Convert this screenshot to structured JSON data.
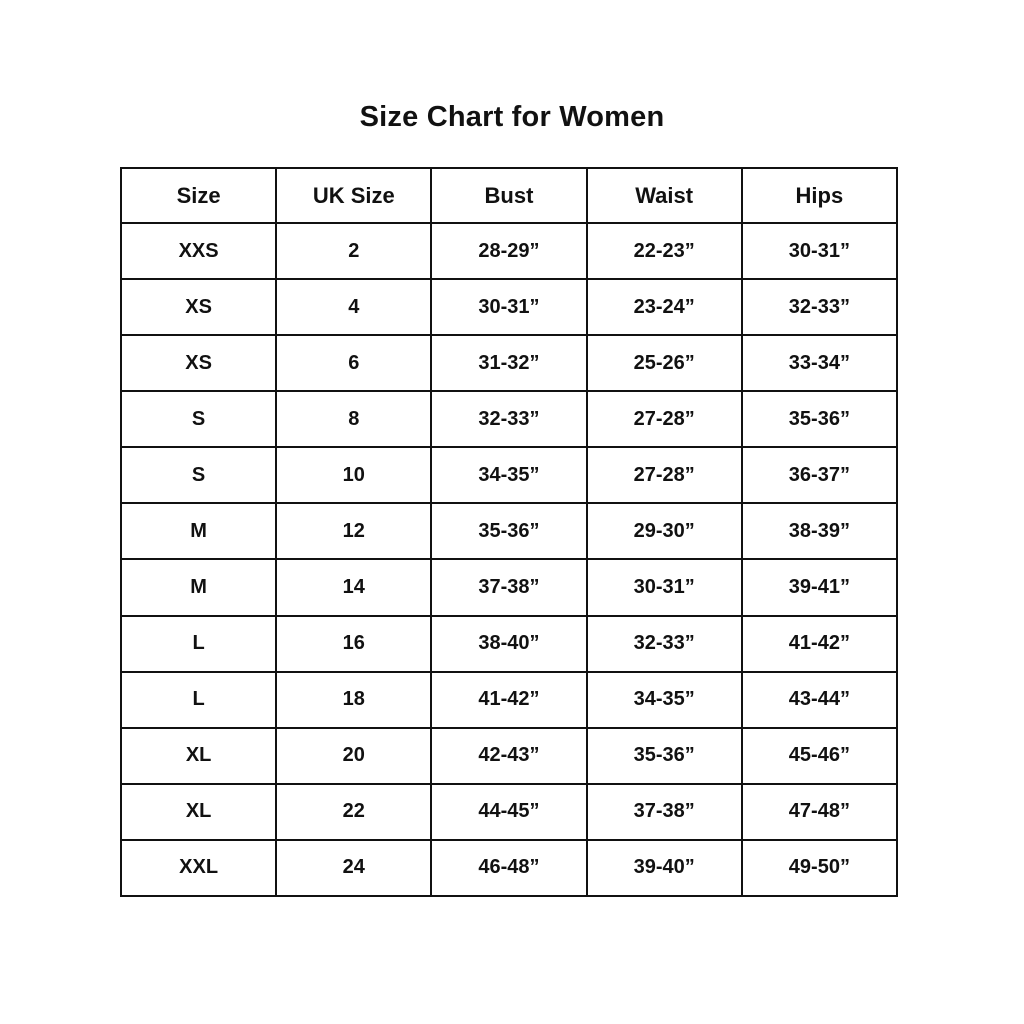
{
  "page": {
    "title": "Size Chart for Women"
  },
  "colors": {
    "background": "#ffffff",
    "text": "#111111",
    "border": "#111111"
  },
  "chart_data": {
    "type": "table",
    "title": "Size Chart for Women",
    "headers": [
      "Size",
      "UK Size",
      "Bust",
      "Waist",
      "Hips"
    ],
    "rows": [
      [
        "XXS",
        "2",
        "28-29”",
        "22-23”",
        "30-31”"
      ],
      [
        "XS",
        "4",
        "30-31”",
        "23-24”",
        "32-33”"
      ],
      [
        "XS",
        "6",
        "31-32”",
        "25-26”",
        "33-34”"
      ],
      [
        "S",
        "8",
        "32-33”",
        "27-28”",
        "35-36”"
      ],
      [
        "S",
        "10",
        "34-35”",
        "27-28”",
        "36-37”"
      ],
      [
        "M",
        "12",
        "35-36”",
        "29-30”",
        "38-39”"
      ],
      [
        "M",
        "14",
        "37-38”",
        "30-31”",
        "39-41”"
      ],
      [
        "L",
        "16",
        "38-40”",
        "32-33”",
        "41-42”"
      ],
      [
        "L",
        "18",
        "41-42”",
        "34-35”",
        "43-44”"
      ],
      [
        "XL",
        "20",
        "42-43”",
        "35-36”",
        "45-46”"
      ],
      [
        "XL",
        "22",
        "44-45”",
        "37-38”",
        "47-48”"
      ],
      [
        "XXL",
        "24",
        "46-48”",
        "39-40”",
        "49-50”"
      ]
    ]
  }
}
